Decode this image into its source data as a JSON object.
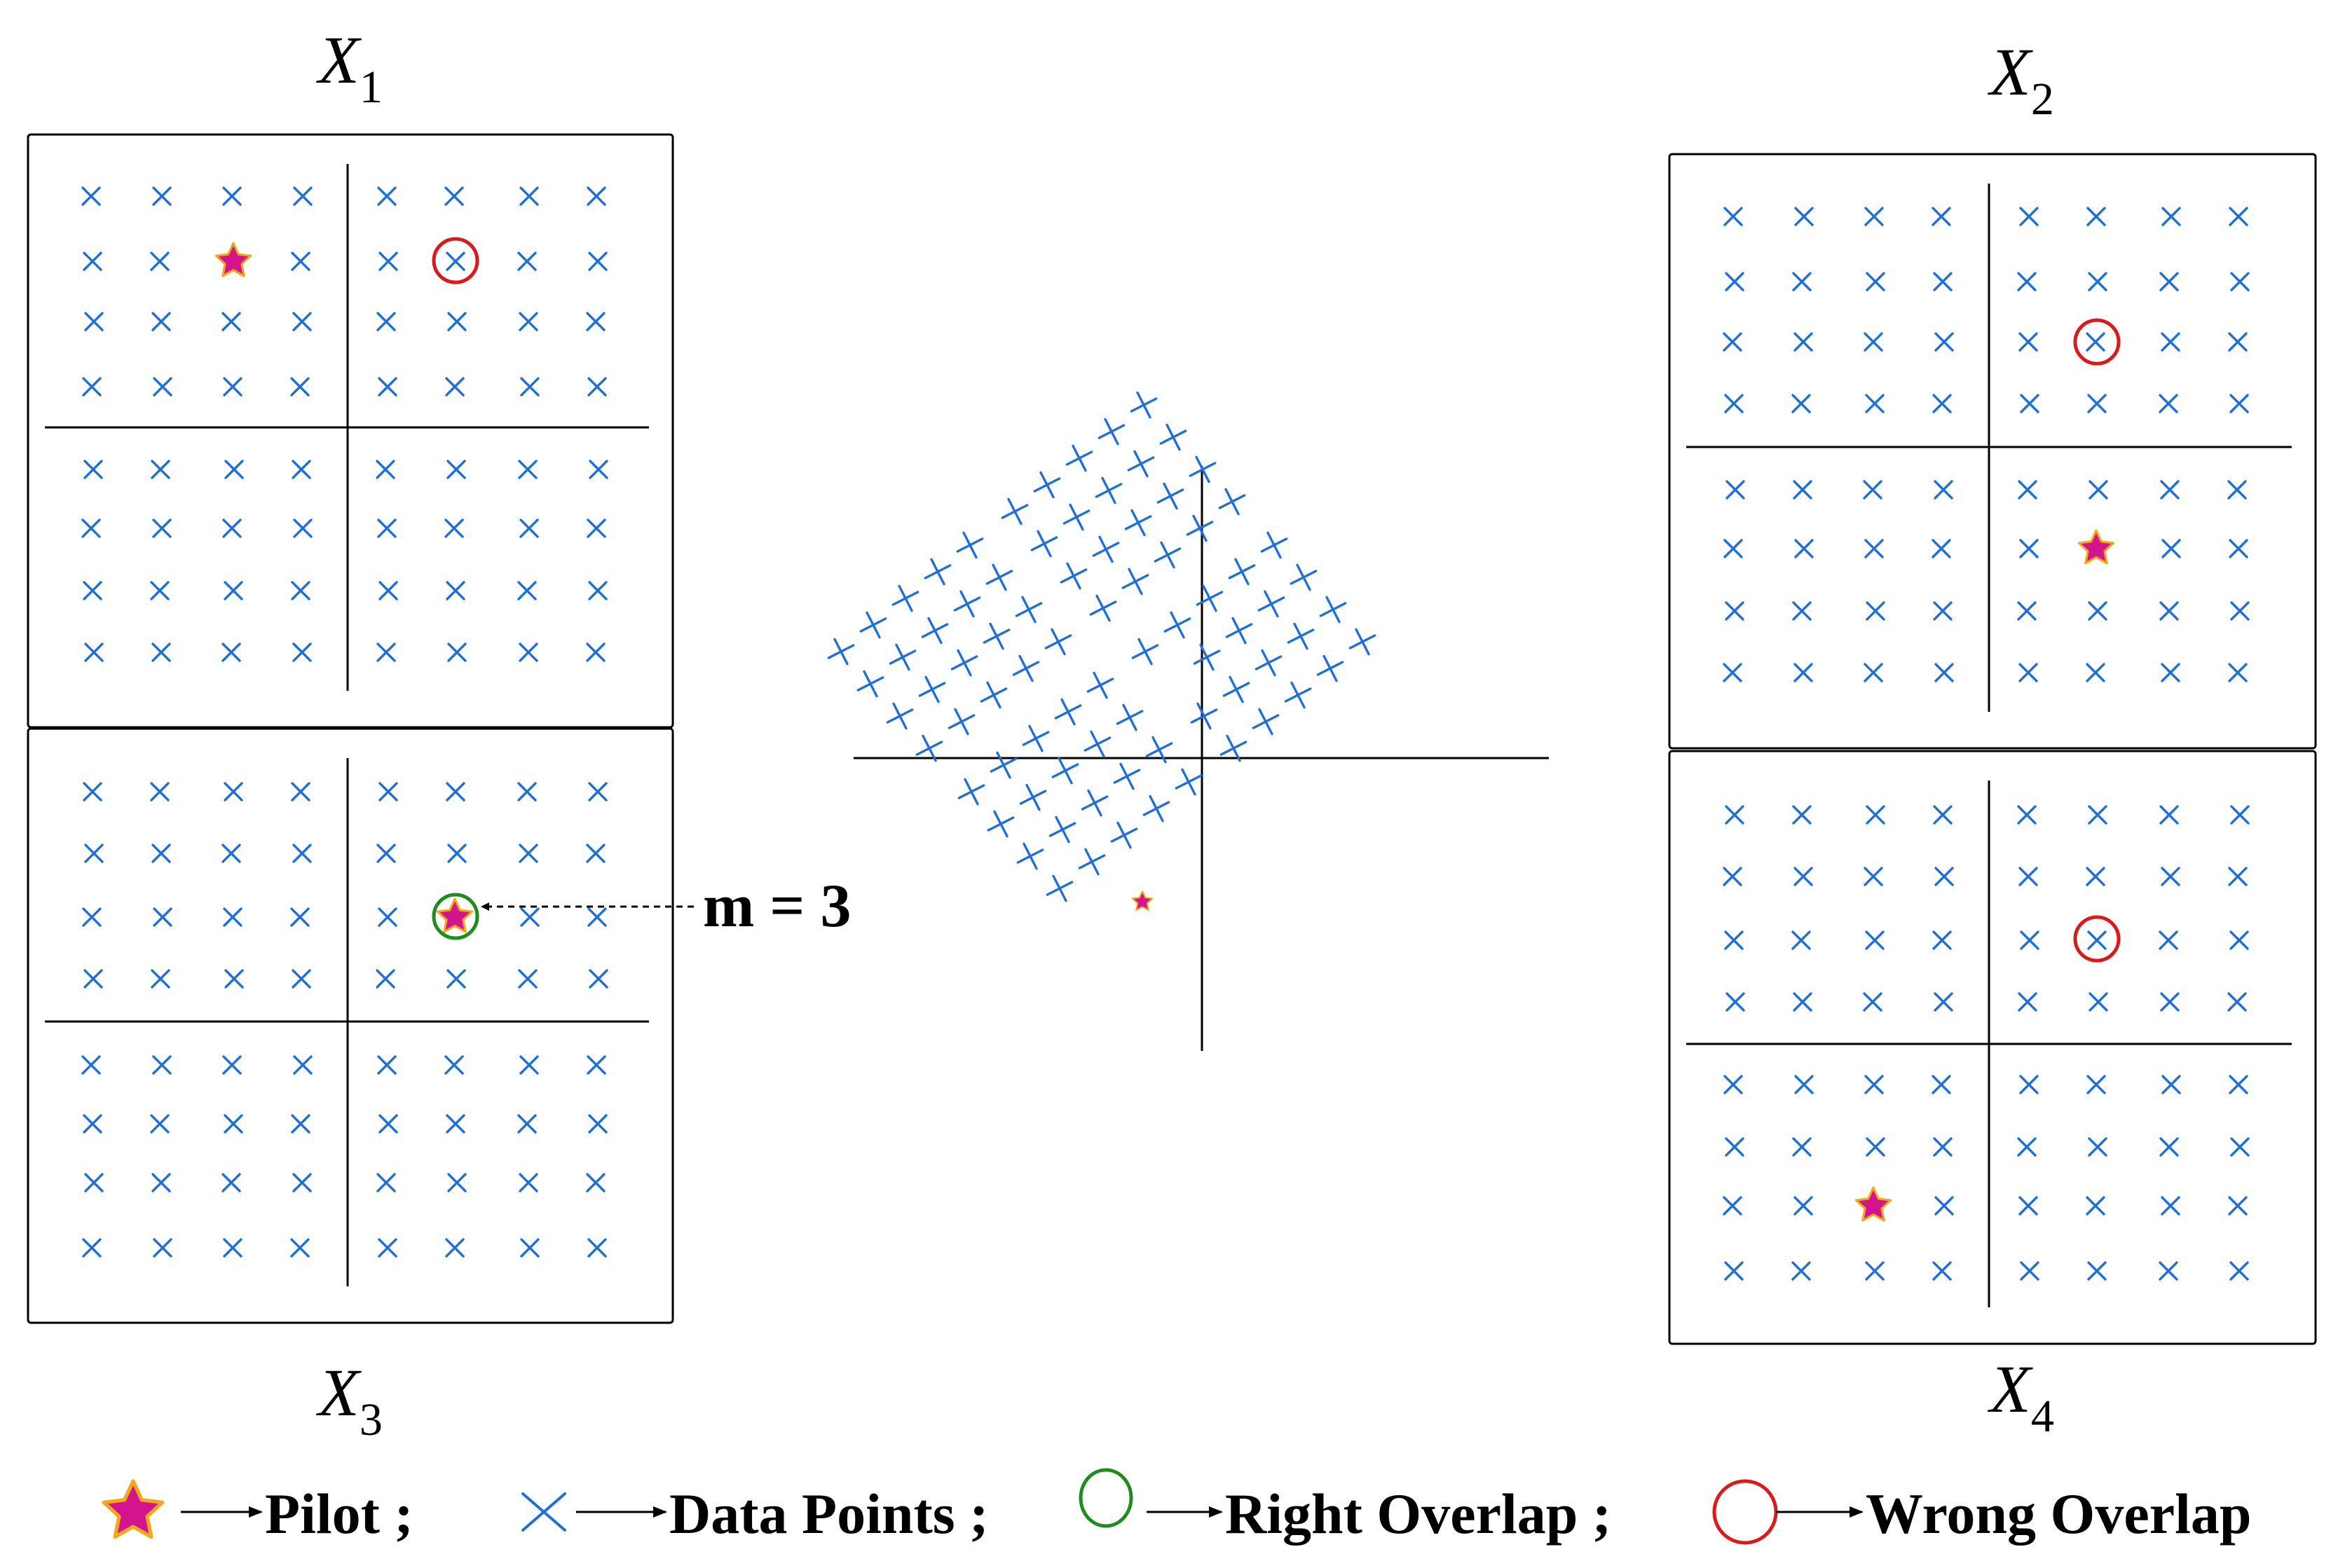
{
  "panels": [
    {
      "id": "X1",
      "name": "X",
      "sub": "1",
      "pilot": [
        2,
        1
      ],
      "overlap": {
        "cell": [
          5,
          1
        ],
        "kind": "wrong"
      }
    },
    {
      "id": "X2",
      "name": "X",
      "sub": "2",
      "pilot": [
        5,
        5
      ],
      "overlap": {
        "cell": [
          5,
          2
        ],
        "kind": "wrong"
      }
    },
    {
      "id": "X3",
      "name": "X",
      "sub": "3",
      "pilot": [
        5,
        2
      ],
      "overlap": {
        "cell": [
          5,
          2
        ],
        "kind": "right"
      }
    },
    {
      "id": "X4",
      "name": "X",
      "sub": "4",
      "pilot": [
        2,
        6
      ],
      "overlap": {
        "cell": [
          5,
          2
        ],
        "kind": "wrong"
      }
    }
  ],
  "annotation": {
    "text": "m = 3"
  },
  "legend": [
    {
      "symbol": "pilot",
      "label": "Pilot ;"
    },
    {
      "symbol": "data",
      "label": "Data Points ;"
    },
    {
      "symbol": "right",
      "label": "Right Overlap ;"
    },
    {
      "symbol": "wrong",
      "label": "Wrong Overlap"
    }
  ],
  "colors": {
    "cross": "#1f6fd6",
    "pilot_fill": "#d4148f",
    "pilot_edge": "#f2a81a",
    "right": "#1e8c1e",
    "wrong": "#d81b1b",
    "axis": "#000000"
  }
}
